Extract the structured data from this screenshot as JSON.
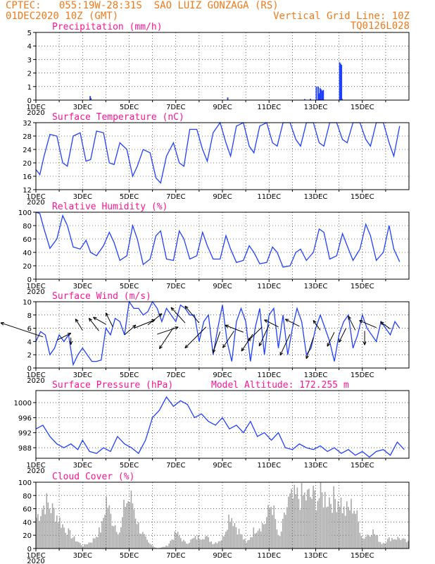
{
  "header": {
    "line1": "CPTEC:   055:19W-28:31S  SAO LUIZ GONZAGA (RS)",
    "line2": "01DEC2020 10Z (GMT)",
    "grid_note": "Vertical Grid Line: 10Z",
    "code": "TQ0126L028"
  },
  "colors": {
    "line": "#2040ff",
    "title": "#ff1493",
    "header": "#f07a1a",
    "cloud": "#a8a8a8"
  },
  "x_labels": [
    "1DEC",
    "3DEC",
    "5DEC",
    "7DEC",
    "9DEC",
    "11DEC",
    "13DEC",
    "15DEC"
  ],
  "year_label": "2020",
  "chart_data": [
    {
      "id": "precip",
      "type": "bar",
      "title": "Precipitation (mm/h)",
      "ylim": [
        0,
        5
      ],
      "yticks": [
        0,
        1,
        2,
        3,
        4,
        5
      ],
      "points": [
        [
          2.3,
          0.3
        ],
        [
          2.33,
          0.15
        ],
        [
          8.2,
          0.2
        ],
        [
          11.5,
          0.08
        ],
        [
          11.75,
          0.1
        ],
        [
          12.0,
          1.0
        ],
        [
          12.08,
          1.0
        ],
        [
          12.12,
          0.5
        ],
        [
          12.16,
          0.9
        ],
        [
          12.2,
          0.8
        ],
        [
          12.25,
          0.7
        ],
        [
          12.3,
          0.75
        ],
        [
          13.0,
          2.8
        ],
        [
          13.04,
          2.7
        ],
        [
          13.08,
          2.6
        ],
        [
          13.1,
          0.1
        ]
      ]
    },
    {
      "id": "temp",
      "type": "line",
      "title": "Surface Temperature (nC)",
      "ylim": [
        12,
        32
      ],
      "yticks": [
        12,
        16,
        20,
        24,
        28,
        32
      ],
      "x": [
        0,
        0.17,
        0.35,
        0.6,
        0.9,
        1.15,
        1.35,
        1.6,
        1.9,
        2.15,
        2.35,
        2.6,
        2.9,
        3.15,
        3.35,
        3.6,
        3.9,
        4.15,
        4.35,
        4.6,
        4.9,
        5.15,
        5.35,
        5.6,
        5.9,
        6.15,
        6.35,
        6.6,
        6.9,
        7.15,
        7.35,
        7.6,
        7.9,
        8.15,
        8.35,
        8.6,
        8.9,
        9.15,
        9.35,
        9.6,
        9.9,
        10.15,
        10.35,
        10.6,
        10.9,
        11.15,
        11.35,
        11.6,
        11.9,
        12.15,
        12.35,
        12.6,
        12.9,
        13.15,
        13.35,
        13.6,
        13.9,
        14.15,
        14.35,
        14.6,
        14.9,
        15.15,
        15.35,
        15.6
      ],
      "y": [
        18,
        16.5,
        22,
        28.5,
        28,
        20,
        19,
        28,
        29,
        20.5,
        21,
        29.5,
        29,
        20,
        19.5,
        26,
        24,
        16,
        19,
        24,
        23,
        15.5,
        14,
        22,
        26,
        20,
        19,
        30,
        30,
        24,
        20.5,
        29,
        32,
        26,
        22,
        31,
        32,
        25,
        23,
        31,
        32,
        26,
        25,
        32,
        32,
        27,
        25,
        32,
        32,
        26,
        25,
        32,
        32,
        27,
        26,
        32,
        32,
        27,
        25,
        32,
        32,
        26,
        22,
        31
      ]
    },
    {
      "id": "rh",
      "type": "line",
      "title": "Relative Humidity (%)",
      "ylim": [
        0,
        100
      ],
      "yticks": [
        0,
        20,
        40,
        60,
        80,
        100
      ],
      "x": [
        0,
        0.17,
        0.35,
        0.6,
        0.9,
        1.15,
        1.35,
        1.6,
        1.9,
        2.15,
        2.35,
        2.6,
        2.9,
        3.15,
        3.35,
        3.6,
        3.9,
        4.15,
        4.35,
        4.6,
        4.9,
        5.15,
        5.35,
        5.6,
        5.9,
        6.15,
        6.35,
        6.6,
        6.9,
        7.15,
        7.35,
        7.6,
        7.9,
        8.15,
        8.35,
        8.6,
        8.9,
        9.15,
        9.35,
        9.6,
        9.9,
        10.15,
        10.35,
        10.6,
        10.9,
        11.15,
        11.35,
        11.6,
        11.9,
        12.15,
        12.35,
        12.6,
        12.9,
        13.15,
        13.35,
        13.6,
        13.9,
        14.15,
        14.35,
        14.6,
        14.9,
        15.15,
        15.35,
        15.6
      ],
      "y": [
        100,
        98,
        75,
        46,
        60,
        95,
        80,
        48,
        45,
        58,
        40,
        35,
        50,
        70,
        55,
        28,
        35,
        80,
        60,
        22,
        30,
        65,
        72,
        30,
        28,
        72,
        60,
        30,
        35,
        70,
        50,
        30,
        30,
        65,
        45,
        25,
        28,
        50,
        40,
        23,
        25,
        48,
        40,
        18,
        20,
        40,
        45,
        28,
        40,
        75,
        70,
        30,
        35,
        68,
        50,
        28,
        45,
        82,
        65,
        28,
        40,
        80,
        45,
        26
      ]
    },
    {
      "id": "wind",
      "type": "line",
      "title": "Surface Wind (m/s)",
      "ylim": [
        0,
        10
      ],
      "yticks": [
        0,
        2,
        4,
        6,
        8,
        10
      ],
      "x": [
        0,
        0.2,
        0.4,
        0.6,
        0.8,
        1.0,
        1.2,
        1.4,
        1.6,
        1.8,
        2.0,
        2.2,
        2.4,
        2.6,
        2.8,
        3.0,
        3.2,
        3.4,
        3.6,
        3.8,
        4.0,
        4.2,
        4.4,
        4.6,
        4.8,
        5.0,
        5.2,
        5.4,
        5.6,
        5.8,
        6.0,
        6.2,
        6.4,
        6.6,
        6.8,
        7.0,
        7.2,
        7.4,
        7.6,
        7.8,
        8.0,
        8.2,
        8.4,
        8.6,
        8.8,
        9.0,
        9.2,
        9.4,
        9.6,
        9.8,
        10.0,
        10.2,
        10.4,
        10.6,
        10.8,
        11.0,
        11.2,
        11.4,
        11.6,
        11.8,
        12.0,
        12.2,
        12.4,
        12.6,
        12.8,
        13.0,
        13.2,
        13.4,
        13.6,
        13.8,
        14.0,
        14.2,
        14.4,
        14.6,
        14.8,
        15.0,
        15.2,
        15.4,
        15.6
      ],
      "y": [
        4,
        5.5,
        5,
        2,
        3,
        5,
        4,
        5,
        0.5,
        2,
        3,
        2,
        1,
        1,
        1.2,
        6,
        5,
        7.5,
        7,
        5,
        10,
        9,
        9,
        8,
        8.5,
        10,
        9,
        7,
        9,
        8,
        7,
        9.5,
        9,
        8,
        8,
        4,
        7,
        8,
        2,
        6,
        9.5,
        4,
        1,
        7,
        9,
        7,
        1,
        6,
        9,
        2,
        8,
        9,
        3,
        8,
        2,
        6,
        9,
        7,
        2,
        3,
        6,
        8,
        6,
        4,
        1,
        5,
        7,
        8,
        3,
        5,
        8,
        6,
        5,
        4,
        7,
        6,
        5,
        7,
        6
      ],
      "arrows": [
        [
          0.3,
          4.7,
          -60,
          -20
        ],
        [
          0.9,
          4.2,
          20,
          -10
        ],
        [
          1.5,
          4.6,
          0,
          10
        ],
        [
          2.0,
          5.7,
          -10,
          -16
        ],
        [
          2.7,
          5.6,
          -14,
          -18
        ],
        [
          3.0,
          6.6,
          -18,
          -10
        ],
        [
          3.3,
          6.2,
          -10,
          -20
        ],
        [
          3.8,
          5.0,
          16,
          -14
        ],
        [
          4.2,
          6.0,
          30,
          -12
        ],
        [
          4.8,
          6.5,
          20,
          -16
        ],
        [
          5.2,
          5.1,
          30,
          -10
        ],
        [
          5.9,
          6.1,
          -20,
          30
        ],
        [
          6.4,
          6.8,
          -20,
          -22
        ],
        [
          7.0,
          6.8,
          -20,
          -24
        ],
        [
          7.3,
          6.2,
          -30,
          30
        ],
        [
          7.9,
          5.5,
          -10,
          30
        ],
        [
          8.5,
          5.6,
          -16,
          24
        ],
        [
          8.9,
          5.4,
          -26,
          -10
        ],
        [
          9.3,
          5.1,
          -16,
          24
        ],
        [
          9.7,
          6.2,
          -20,
          20
        ],
        [
          10.0,
          6.5,
          -14,
          30
        ],
        [
          10.4,
          6.2,
          -20,
          -10
        ],
        [
          10.9,
          5.1,
          -14,
          30
        ],
        [
          11.3,
          6.3,
          -20,
          -10
        ],
        [
          11.9,
          4.6,
          -10,
          30
        ],
        [
          12.2,
          5.7,
          -10,
          -14
        ],
        [
          12.8,
          5.4,
          -10,
          20
        ],
        [
          13.3,
          6.0,
          -10,
          20
        ],
        [
          13.7,
          5.7,
          -10,
          -20
        ],
        [
          14.1,
          5.6,
          0,
          20
        ],
        [
          14.6,
          6.1,
          -24,
          -10
        ],
        [
          15.2,
          5.9,
          -14,
          -10
        ]
      ]
    },
    {
      "id": "pres",
      "type": "line",
      "title": "Surface Pressure (hPa)",
      "annotation": "Model Altitude: 172.255 m",
      "ylim": [
        985.2,
        1003.2
      ],
      "yticks": [
        988,
        992,
        996,
        1000
      ],
      "x": [
        0,
        0.3,
        0.6,
        0.9,
        1.2,
        1.5,
        1.8,
        2.0,
        2.3,
        2.6,
        2.9,
        3.2,
        3.5,
        3.8,
        4.1,
        4.4,
        4.7,
        5.0,
        5.3,
        5.6,
        5.9,
        6.2,
        6.5,
        6.8,
        7.1,
        7.4,
        7.7,
        8.0,
        8.3,
        8.6,
        8.9,
        9.2,
        9.5,
        9.8,
        10.1,
        10.4,
        10.7,
        11.0,
        11.3,
        11.6,
        11.9,
        12.2,
        12.5,
        12.8,
        13.1,
        13.4,
        13.7,
        14.0,
        14.3,
        14.6,
        14.9,
        15.2,
        15.5,
        15.8
      ],
      "y": [
        993,
        994,
        991,
        989,
        988,
        989,
        987.5,
        990,
        987,
        986.5,
        988,
        987,
        991,
        989,
        988,
        986.5,
        990,
        996,
        998,
        1001.5,
        999,
        1000.5,
        999.5,
        996,
        997,
        995,
        994,
        996,
        993,
        994,
        992,
        995,
        991,
        992,
        990,
        992,
        988,
        987.5,
        989,
        988,
        987.5,
        988.5,
        987,
        988,
        986.5,
        987.5,
        986,
        987,
        985.5,
        987,
        987.5,
        986,
        989.5,
        987.5
      ]
    },
    {
      "id": "cloud",
      "type": "bar",
      "title": "Cloud Cover (%)",
      "ylim": [
        0,
        100
      ],
      "yticks": [
        0,
        20,
        40,
        60,
        80,
        100
      ]
    }
  ]
}
